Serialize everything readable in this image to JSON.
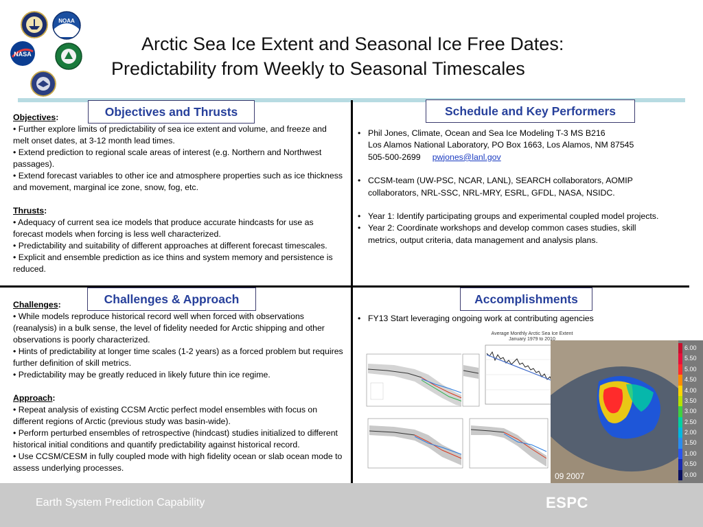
{
  "title": {
    "line1": "Arctic Sea Ice Extent and Seasonal Ice Free Dates:",
    "line2": "Predictability from Weekly to Seasonal Timescales"
  },
  "logos": {
    "noaa": "NOAA",
    "nasa": "NASA"
  },
  "sections": {
    "objectives_thrusts": "Objectives and Thrusts",
    "schedule": "Schedule and Key Performers",
    "challenges": "Challenges & Approach",
    "accomplishments": "Accomplishments"
  },
  "objectives": {
    "heading": "Objectives",
    "items": [
      "•  Further explore limits of predictability of sea ice extent and volume, and freeze and melt onset dates, at 3-12 month lead times.",
      "•  Extend prediction to regional scale areas of interest (e.g. Northern and Northwest passages).",
      "•  Extend forecast variables to other ice and atmosphere properties such as ice thickness and movement, marginal ice zone, snow, fog, etc."
    ]
  },
  "thrusts": {
    "heading": "Thrusts",
    "items": [
      "•  Adequacy of current sea ice models that produce accurate hindcasts for use as forecast models when forcing is less well characterized.",
      "•  Predictability and suitability of different approaches at different forecast timescales.",
      "•  Explicit and ensemble prediction as ice thins and system memory and persistence is reduced."
    ]
  },
  "challenges": {
    "heading": "Challenges",
    "items": [
      "•  While models reproduce historical record well when forced with observations (reanalysis) in a bulk sense, the level of fidelity needed for Arctic shipping  and other observations is poorly characterized.",
      "•  Hints of predictability at longer time scales (1-2 years) as a forced problem but requires further definition of skill metrics.",
      "•  Predictability may be greatly reduced in likely future thin ice regime."
    ]
  },
  "approach": {
    "heading": "Approach",
    "items": [
      "•  Repeat analysis of existing CCSM Arctic perfect model ensembles with focus on different regions of Arctic (previous study was basin-wide).",
      "•  Perform perturbed ensembles of retrospective (hindcast) studies initialized to different historical initial conditions and quantify predictability against historical record.",
      "•  Use CCSM/CESM in fully coupled mode with high fidelity ocean or slab ocean mode to assess underlying processes."
    ]
  },
  "schedule": {
    "contact_line1": "Phil Jones, Climate, Ocean and Sea Ice Modeling T-3 MS B216",
    "contact_line2": "Los Alamos National Laboratory, PO Box 1663,  Los Alamos, NM 87545",
    "phone": "505-500-2699",
    "email": "pwjones@lanl.gov",
    "collab": "CCSM-team (UW-PSC, NCAR,  LANL),  SEARCH collaborators, AOMIP collaborators, NRL-SSC, NRL-MRY,  ESRL, GFDL, NASA, NSIDC.",
    "year1": "Year 1:  Identify participating groups and experimental coupled model projects.",
    "year2": "Year 2:  Coordinate workshops and develop common cases studies, skill metrics, output criteria, data management and analysis plans."
  },
  "accomplishments": {
    "items": [
      "FY13 Start leveraging ongoing work at contributing agencies"
    ]
  },
  "figure_extent": {
    "title_line1": "Average Monthly Arctic Sea Ice Extent",
    "title_line2": "January 1979 to 2010"
  },
  "map": {
    "date_label": "09  2007",
    "scale_labels": [
      "6.00",
      "5.50",
      "5.00",
      "4.50",
      "4.00",
      "3.50",
      "3.00",
      "2.50",
      "2.00",
      "1.50",
      "1.00",
      "0.50",
      "0.00"
    ],
    "scale_colors": [
      "#c8102e",
      "#e8103a",
      "#ff2b2b",
      "#ff8c00",
      "#ffd400",
      "#b8e000",
      "#40d040",
      "#00d0a0",
      "#00b8e0",
      "#2a8cf0",
      "#2a55f0",
      "#1a2ab0",
      "#0a1060"
    ]
  },
  "footer": {
    "left": "Earth System Prediction Capability",
    "right": "ESPC"
  }
}
